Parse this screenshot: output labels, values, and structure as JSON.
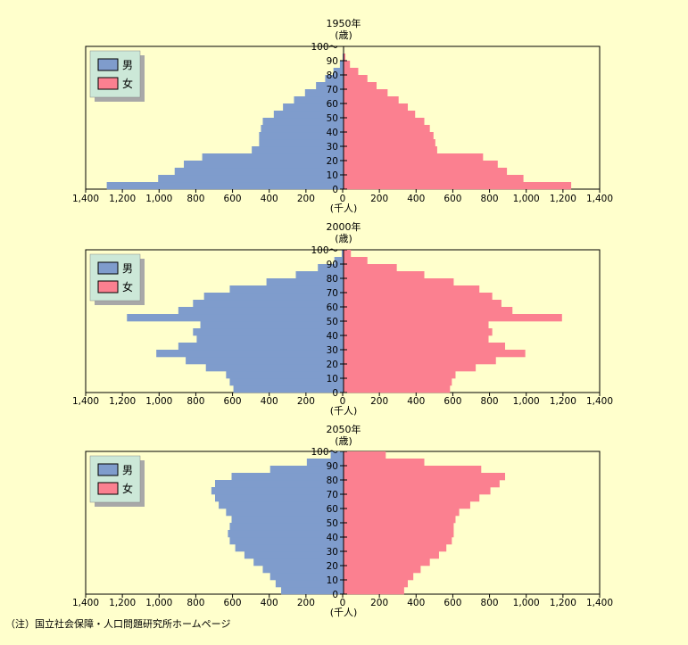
{
  "note": "（注）国立社会保障・人口問題研究所ホームページ",
  "colors": {
    "male": "#7f9ccc",
    "female": "#fb8090",
    "legend_bg": "#cce8d8",
    "legend_shadow": "#a8a8a8",
    "axis": "#000000"
  },
  "chart_data": [
    {
      "type": "population-pyramid",
      "title": "1950年",
      "ylabel": "(歳)",
      "xlabel": "(千人)",
      "legend": [
        {
          "name": "男",
          "color": "#7f9ccc"
        },
        {
          "name": "女",
          "color": "#fb8090"
        }
      ],
      "legend_placement": "top-left",
      "xlim": [
        0,
        1400
      ],
      "ylim": [
        0,
        100
      ],
      "x_ticks": [
        "1,400",
        "1,200",
        "1,000",
        "800",
        "600",
        "400",
        "200",
        "0",
        "200",
        "400",
        "600",
        "800",
        "1,000",
        "1,200",
        "1,400"
      ],
      "y_ticks": [
        "0",
        "10",
        "20",
        "30",
        "40",
        "50",
        "60",
        "70",
        "80",
        "90",
        "100〜"
      ],
      "ages": [
        0,
        5,
        10,
        15,
        20,
        25,
        30,
        35,
        40,
        45,
        50,
        55,
        60,
        65,
        70,
        75,
        80,
        85,
        90,
        95
      ],
      "male": [
        1290,
        1010,
        920,
        870,
        770,
        500,
        460,
        460,
        450,
        440,
        380,
        330,
        270,
        210,
        150,
        100,
        55,
        20,
        5,
        0
      ],
      "female": [
        1240,
        980,
        890,
        840,
        760,
        510,
        500,
        490,
        470,
        440,
        390,
        350,
        300,
        240,
        180,
        130,
        80,
        35,
        10,
        0
      ]
    },
    {
      "type": "population-pyramid",
      "title": "2000年",
      "ylabel": "(歳)",
      "xlabel": "(千人)",
      "legend": [
        {
          "name": "男",
          "color": "#7f9ccc"
        },
        {
          "name": "女",
          "color": "#fb8090"
        }
      ],
      "legend_placement": "top-left",
      "xlim": [
        0,
        1400
      ],
      "ylim": [
        0,
        100
      ],
      "x_ticks": [
        "1,400",
        "1,200",
        "1,000",
        "800",
        "600",
        "400",
        "200",
        "0",
        "200",
        "400",
        "600",
        "800",
        "1,000",
        "1,200",
        "1,400"
      ],
      "y_ticks": [
        "0",
        "10",
        "20",
        "30",
        "40",
        "50",
        "60",
        "70",
        "80",
        "90",
        "100〜"
      ],
      "ages": [
        0,
        5,
        10,
        15,
        20,
        25,
        30,
        35,
        40,
        45,
        50,
        55,
        60,
        65,
        70,
        75,
        80,
        85,
        90,
        95
      ],
      "male": [
        600,
        620,
        640,
        750,
        860,
        1020,
        900,
        800,
        820,
        780,
        1180,
        900,
        820,
        760,
        620,
        420,
        260,
        140,
        50,
        10
      ],
      "female": [
        580,
        590,
        610,
        720,
        830,
        990,
        880,
        790,
        810,
        790,
        1190,
        920,
        860,
        810,
        740,
        600,
        440,
        290,
        130,
        40
      ]
    },
    {
      "type": "population-pyramid",
      "title": "2050年",
      "ylabel": "(歳)",
      "xlabel": "(千人)",
      "legend": [
        {
          "name": "男",
          "color": "#7f9ccc"
        },
        {
          "name": "女",
          "color": "#fb8090"
        }
      ],
      "legend_placement": "top-left",
      "xlim": [
        0,
        1400
      ],
      "ylim": [
        0,
        100
      ],
      "x_ticks": [
        "1,400",
        "1,200",
        "1,000",
        "800",
        "600",
        "400",
        "200",
        "0",
        "200",
        "400",
        "600",
        "800",
        "1,000",
        "1,200",
        "1,400"
      ],
      "y_ticks": [
        "0",
        "10",
        "20",
        "30",
        "40",
        "50",
        "60",
        "70",
        "80",
        "90",
        "100〜"
      ],
      "ages": [
        0,
        5,
        10,
        15,
        20,
        25,
        30,
        35,
        40,
        45,
        50,
        55,
        60,
        65,
        70,
        75,
        80,
        85,
        90,
        95
      ],
      "male": [
        340,
        370,
        400,
        440,
        490,
        540,
        590,
        620,
        630,
        620,
        610,
        640,
        680,
        700,
        720,
        700,
        610,
        400,
        200,
        70
      ],
      "female": [
        330,
        350,
        380,
        420,
        470,
        520,
        560,
        590,
        600,
        600,
        610,
        630,
        690,
        740,
        800,
        850,
        880,
        750,
        440,
        230
      ]
    }
  ]
}
